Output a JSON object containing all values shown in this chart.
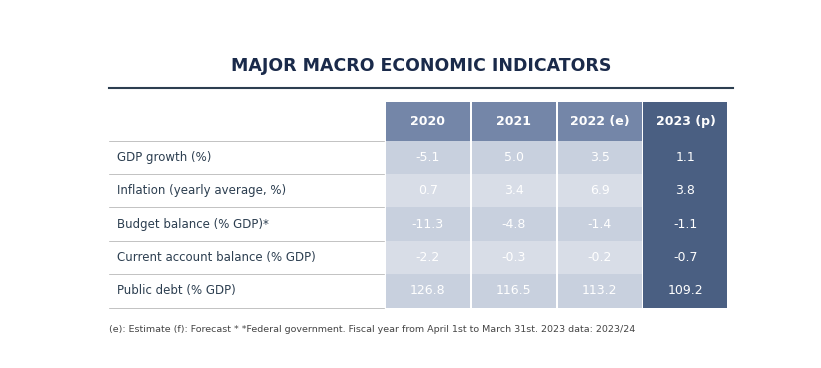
{
  "title": "MAJOR MACRO ECONOMIC INDICATORS",
  "footnote": "(e): Estimate (f): Forecast * *Federal government. Fiscal year from April 1st to March 31st. 2023 data: 2023/24",
  "columns": [
    "2020",
    "2021",
    "2022 (e)",
    "2023 (p)"
  ],
  "rows": [
    {
      "label": "GDP growth (%)",
      "values": [
        "-5.1",
        "5.0",
        "3.5",
        "1.1"
      ]
    },
    {
      "label": "Inflation (yearly average, %)",
      "values": [
        "0.7",
        "3.4",
        "6.9",
        "3.8"
      ]
    },
    {
      "label": "Budget balance (% GDP)*",
      "values": [
        "-11.3",
        "-4.8",
        "-1.4",
        "-1.1"
      ]
    },
    {
      "label": "Current account balance (% GDP)",
      "values": [
        "-2.2",
        "-0.3",
        "-0.2",
        "-0.7"
      ]
    },
    {
      "label": "Public debt (% GDP)",
      "values": [
        "126.8",
        "116.5",
        "113.2",
        "109.2"
      ]
    }
  ],
  "header_bg_colors": [
    "#7486a8",
    "#7486a8",
    "#7486a8",
    "#4a5f82"
  ],
  "row_bg_colors": [
    "#c8d0de",
    "#d8dde7",
    "#c8d0de",
    "#d8dde7",
    "#c8d0de"
  ],
  "last_col_bg_colors": [
    "#4a5f82",
    "#4a5f82",
    "#4a5f82",
    "#4a5f82",
    "#4a5f82"
  ],
  "header_text_color": "#ffffff",
  "cell_text_color": "#ffffff",
  "label_text_color": "#2c3e50",
  "title_color": "#1a2a4a",
  "background_color": "#ffffff",
  "line_color": "#2c3e50"
}
